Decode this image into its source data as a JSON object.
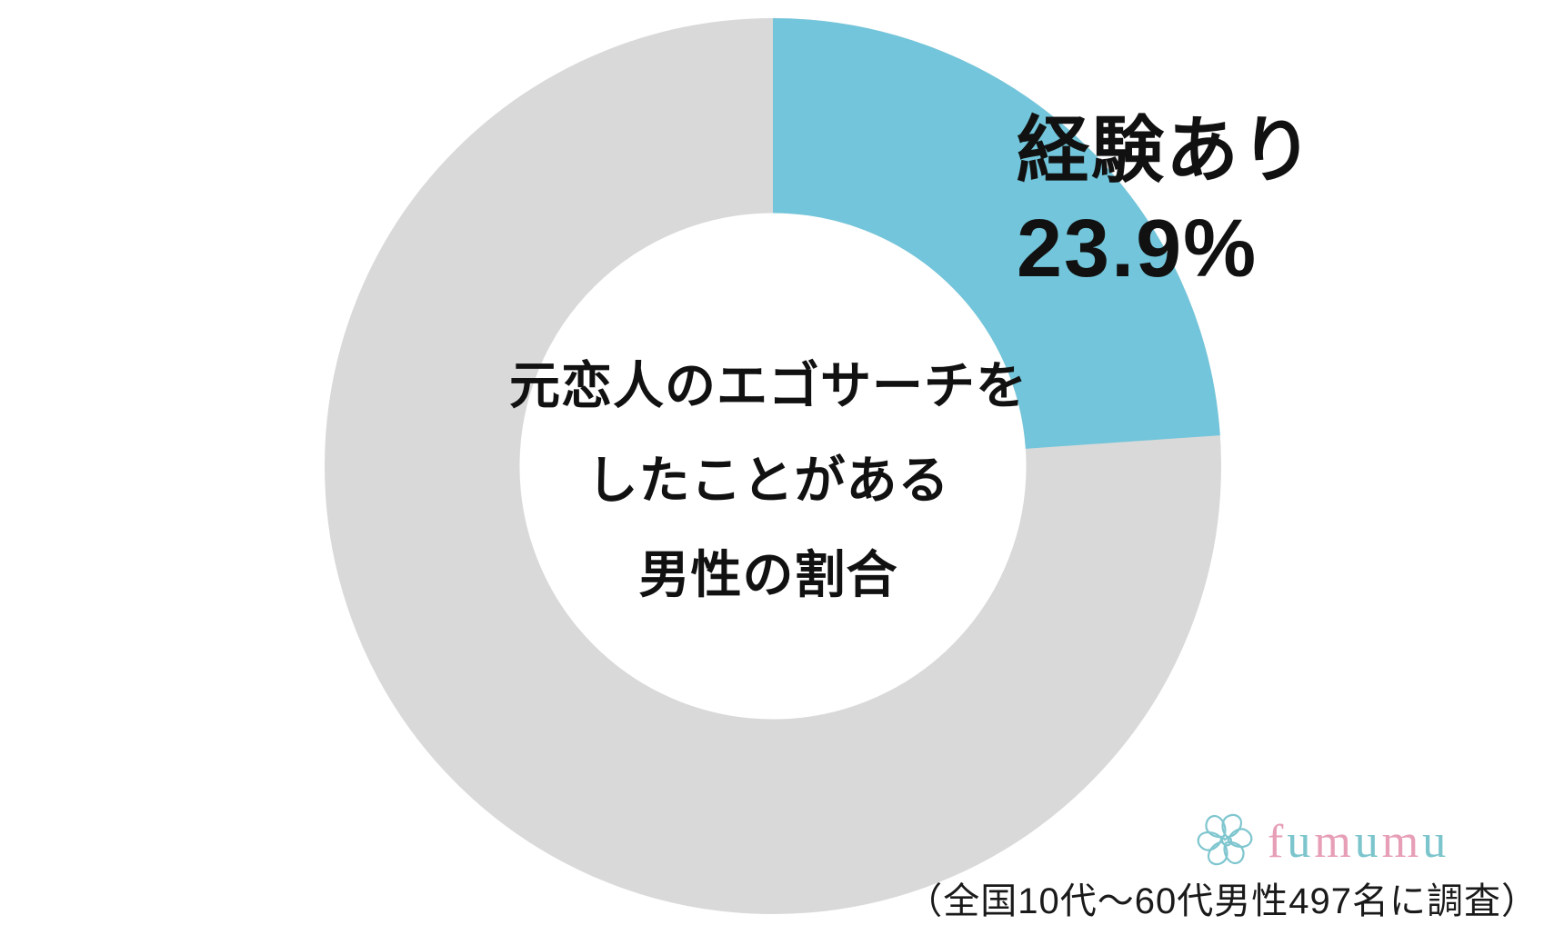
{
  "chart_data": {
    "type": "pie",
    "subtype": "donut",
    "title": "元恋人のエゴサーチをしたことがある男性の割合",
    "center_text_lines": [
      "元恋人のエゴサーチを",
      "したことがある",
      "男性の割合"
    ],
    "values": [
      23.9,
      76.1
    ],
    "labels": [
      "経験あり",
      ""
    ],
    "colors": [
      "#72C5DA",
      "#D9D9D9"
    ],
    "start_angle_deg": -90,
    "direction": "clockwise",
    "inner_radius_ratio": 0.565,
    "legend": "none",
    "callout_label": {
      "line1": "経験あり",
      "line2": "23.9%",
      "text_color": "#111111"
    }
  },
  "branding": {
    "logo_text": "fumumu",
    "logo_letters": [
      {
        "char": "f",
        "color": "#E79FB8"
      },
      {
        "char": "u",
        "color": "#7CC5CD"
      },
      {
        "char": "m",
        "color": "#E79FB8"
      },
      {
        "char": "u",
        "color": "#7CC5CD"
      },
      {
        "char": "m",
        "color": "#E79FB8"
      },
      {
        "char": "u",
        "color": "#7CC5CD"
      }
    ],
    "flower_icon_color": "#7FC6CF"
  },
  "footnote": "（全国10代～60代男性497名に調査）"
}
